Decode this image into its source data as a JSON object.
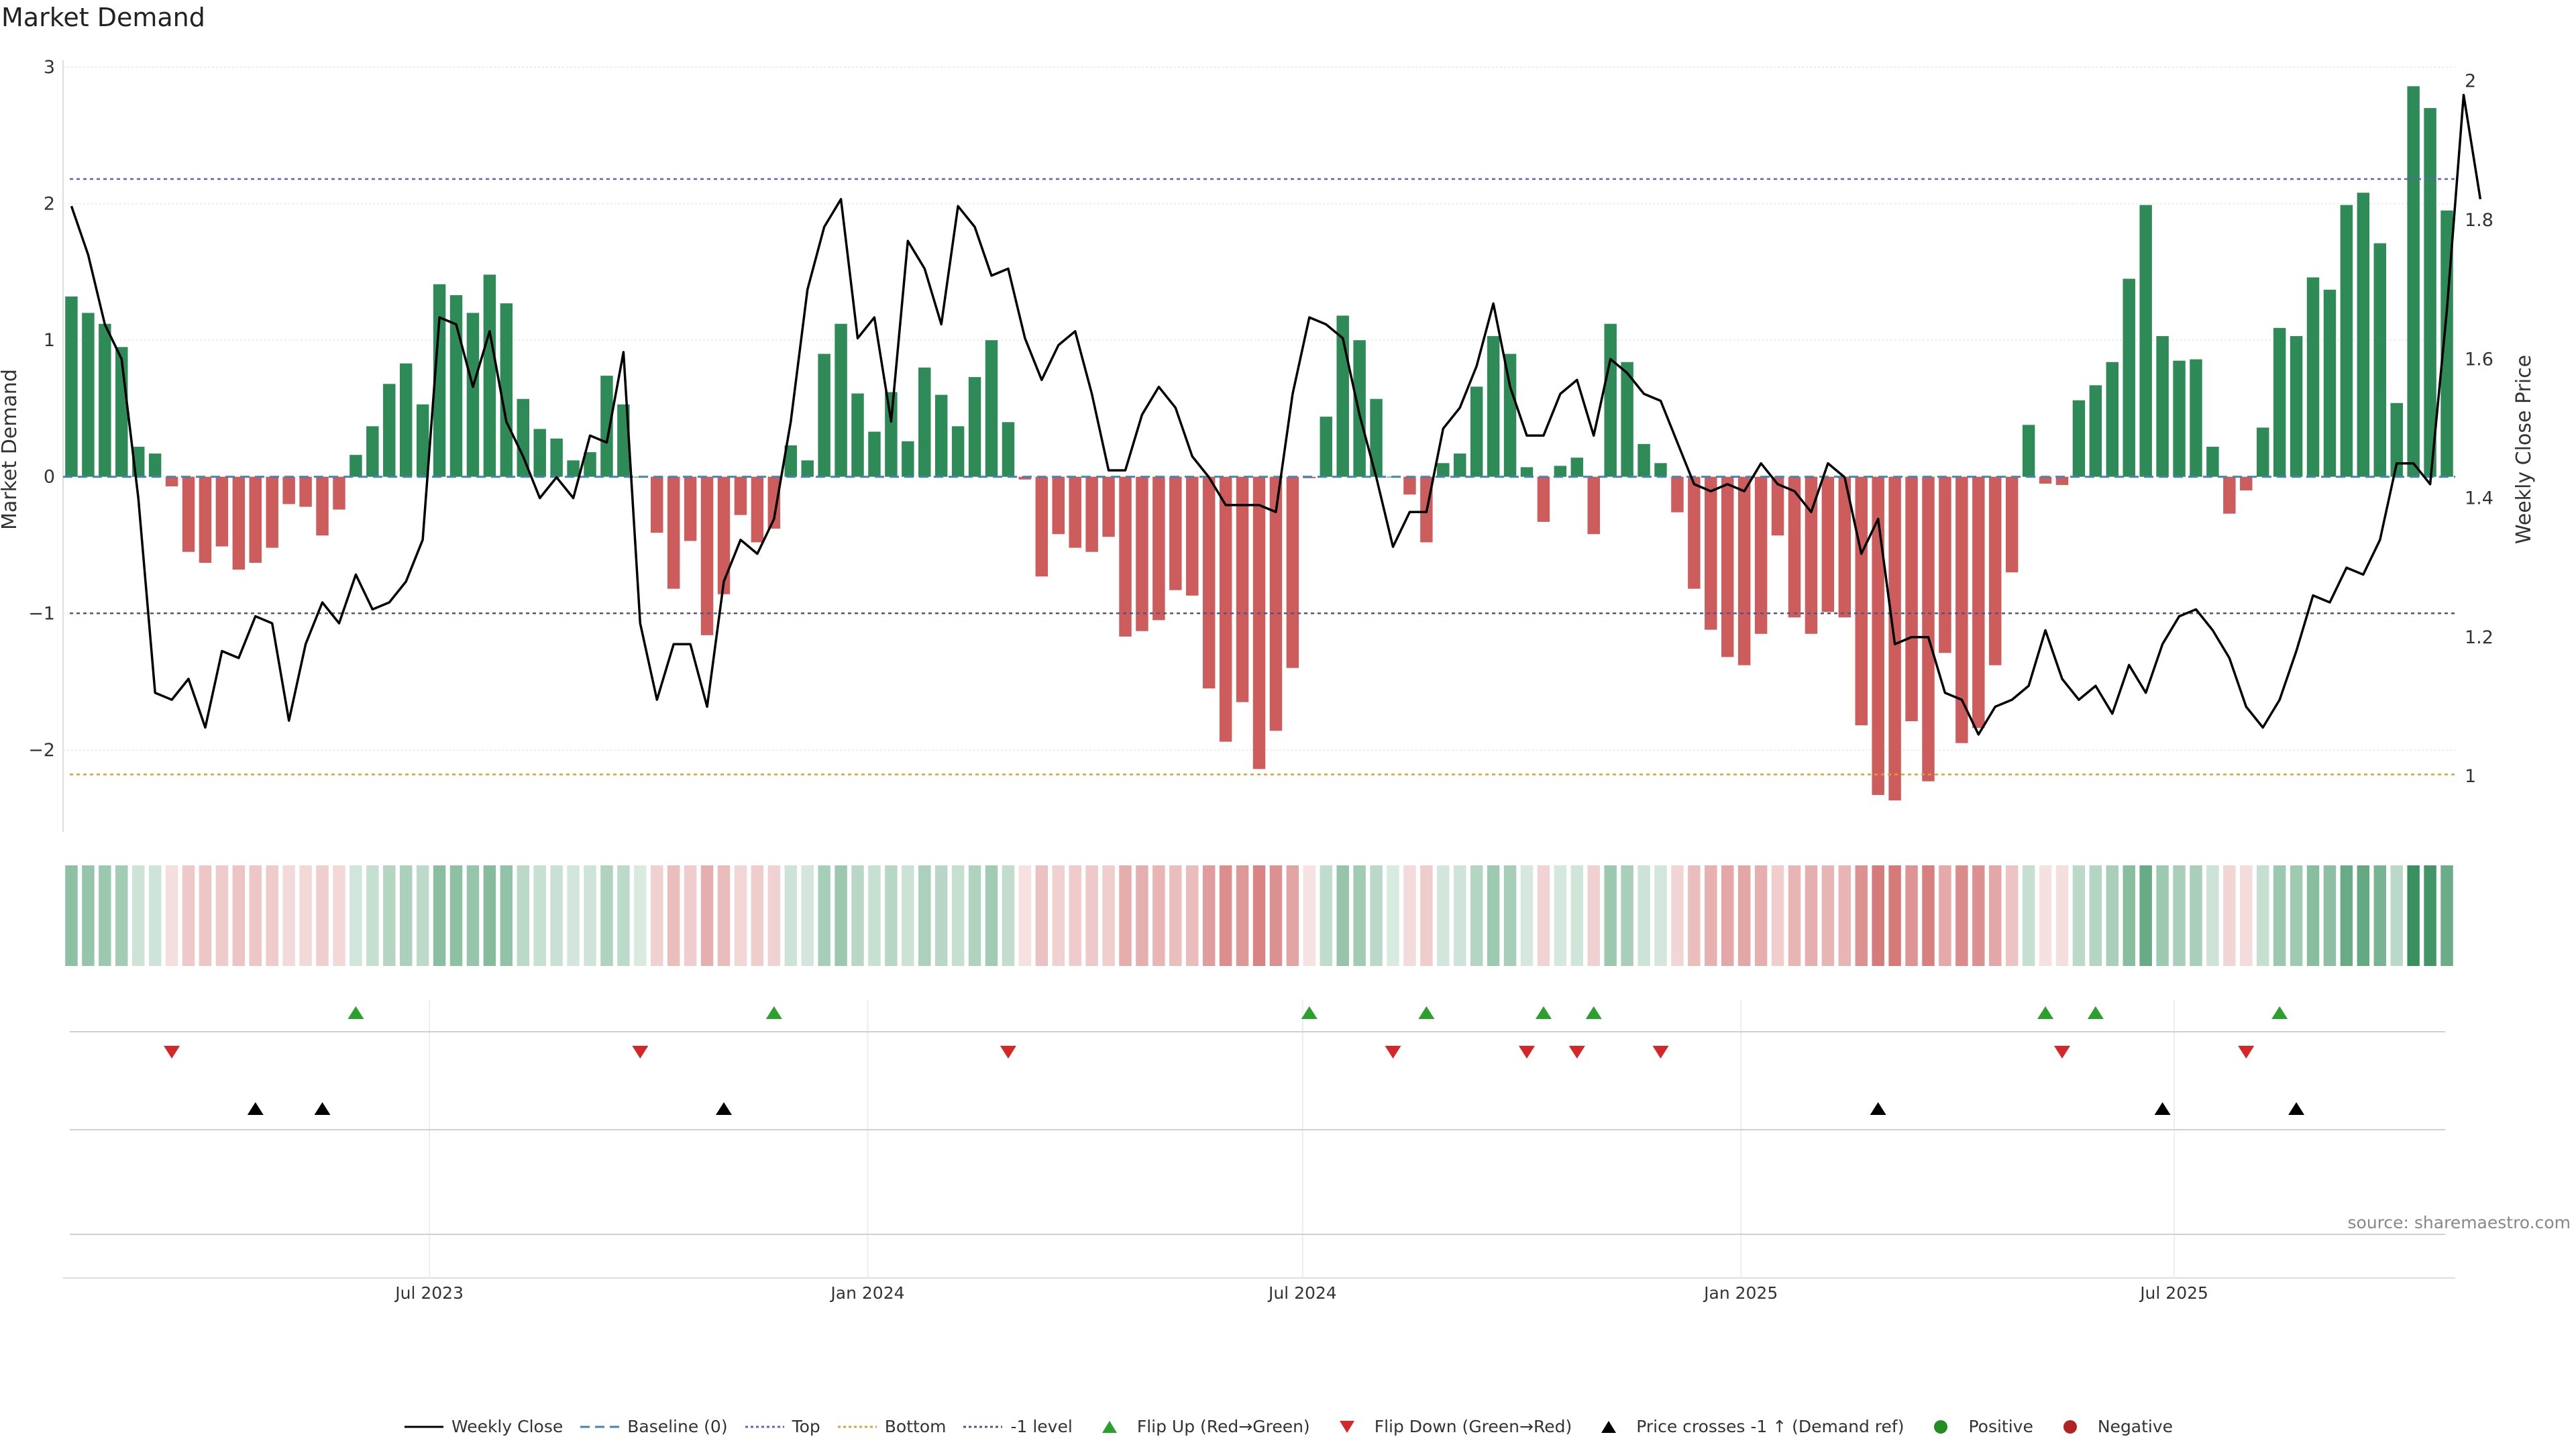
{
  "chart_data": {
    "type": "bar",
    "title": "Market Demand",
    "ylabel": "Market Demand",
    "y2label": "Weekly Close Price",
    "ylim": [
      -2.6,
      3.0
    ],
    "y2lim": [
      0.92,
      2.02
    ],
    "yticks": [
      "3",
      "2",
      "1",
      "0",
      "−1",
      "−2"
    ],
    "ytick_values": [
      3,
      2,
      1,
      0,
      -1,
      -2
    ],
    "y2ticks": [
      "2",
      "1.8",
      "1.6",
      "1.4",
      "1.2",
      "1"
    ],
    "y2tick_values": [
      2,
      1.8,
      1.6,
      1.4,
      1.2,
      1
    ],
    "x_start": "2023-02-05",
    "x_step_weeks": 1,
    "xticks": [
      {
        "label": "Jul 2023",
        "index": 21.4
      },
      {
        "label": "Jan 2024",
        "index": 47.6
      },
      {
        "label": "Jul 2024",
        "index": 73.6
      },
      {
        "label": "Jan 2025",
        "index": 99.8
      },
      {
        "label": "Jul 2025",
        "index": 125.7
      }
    ],
    "reference_lines": {
      "baseline": 0,
      "top": 2.18,
      "bottom": -2.18,
      "minus_one": -1
    },
    "series": [
      {
        "name": "Market Demand",
        "values": [
          1.32,
          1.2,
          1.12,
          0.95,
          0.22,
          0.17,
          -0.07,
          -0.55,
          -0.63,
          -0.51,
          -0.68,
          -0.63,
          -0.52,
          -0.2,
          -0.22,
          -0.43,
          -0.24,
          0.16,
          0.37,
          0.68,
          0.83,
          0.53,
          1.41,
          1.33,
          1.2,
          1.48,
          1.27,
          0.57,
          0.35,
          0.28,
          0.12,
          0.18,
          0.74,
          0.53,
          0,
          -0.41,
          -0.82,
          -0.47,
          -1.16,
          -0.86,
          -0.28,
          -0.48,
          -0.38,
          0.23,
          0.12,
          0.9,
          1.12,
          0.61,
          0.33,
          0.62,
          0.26,
          0.8,
          0.6,
          0.37,
          0.73,
          1.0,
          0.4,
          -0.02,
          -0.73,
          -0.42,
          -0.52,
          -0.55,
          -0.44,
          -1.17,
          -1.13,
          -1.05,
          -0.83,
          -0.87,
          -1.55,
          -1.94,
          -1.65,
          -2.14,
          -1.86,
          -1.4,
          -0.01,
          0.44,
          1.18,
          1.0,
          0.57,
          0,
          -0.13,
          -0.48,
          0.1,
          0.17,
          0.66,
          1.03,
          0.9,
          0.07,
          -0.33,
          0.08,
          0.14,
          -0.42,
          1.12,
          0.84,
          0.24,
          0.1,
          -0.26,
          -0.82,
          -1.12,
          -1.32,
          -1.38,
          -1.15,
          -0.43,
          -1.03,
          -1.15,
          -0.99,
          -1.03,
          -1.82,
          -2.33,
          -2.37,
          -1.79,
          -2.23,
          -1.29,
          -1.95,
          -1.84,
          -1.38,
          -0.7,
          0.38,
          -0.05,
          -0.06,
          0.56,
          0.67,
          0.84,
          1.45,
          1.99,
          1.03,
          0.85,
          0.86,
          0.22,
          -0.27,
          -0.1,
          0.36,
          1.09,
          1.03,
          1.46,
          1.37,
          1.99,
          2.08,
          1.71,
          0.54,
          2.86,
          2.7,
          1.95
        ]
      },
      {
        "name": "Weekly Close",
        "axis": "right",
        "values": [
          1.82,
          1.75,
          1.65,
          1.6,
          1.4,
          1.12,
          1.11,
          1.14,
          1.07,
          1.18,
          1.17,
          1.23,
          1.22,
          1.08,
          1.19,
          1.25,
          1.22,
          1.29,
          1.24,
          1.25,
          1.28,
          1.34,
          1.66,
          1.65,
          1.56,
          1.64,
          1.51,
          1.46,
          1.4,
          1.43,
          1.4,
          1.49,
          1.48,
          1.61,
          1.22,
          1.11,
          1.19,
          1.19,
          1.1,
          1.28,
          1.34,
          1.32,
          1.37,
          1.51,
          1.7,
          1.79,
          1.83,
          1.63,
          1.66,
          1.51,
          1.77,
          1.73,
          1.65,
          1.82,
          1.79,
          1.72,
          1.73,
          1.63,
          1.57,
          1.62,
          1.64,
          1.55,
          1.44,
          1.44,
          1.52,
          1.56,
          1.53,
          1.46,
          1.43,
          1.39,
          1.39,
          1.39,
          1.38,
          1.55,
          1.66,
          1.65,
          1.63,
          1.52,
          1.43,
          1.33,
          1.38,
          1.38,
          1.5,
          1.53,
          1.59,
          1.68,
          1.56,
          1.49,
          1.49,
          1.55,
          1.57,
          1.49,
          1.6,
          1.58,
          1.55,
          1.54,
          1.48,
          1.42,
          1.41,
          1.42,
          1.41,
          1.45,
          1.42,
          1.41,
          1.38,
          1.45,
          1.43,
          1.32,
          1.37,
          1.19,
          1.2,
          1.2,
          1.12,
          1.11,
          1.06,
          1.1,
          1.11,
          1.13,
          1.21,
          1.14,
          1.11,
          1.13,
          1.09,
          1.16,
          1.12,
          1.19,
          1.23,
          1.24,
          1.21,
          1.17,
          1.1,
          1.07,
          1.11,
          1.18,
          1.26,
          1.25,
          1.3,
          1.29,
          1.34,
          1.45,
          1.45,
          1.42,
          1.67,
          1.98,
          1.83
        ]
      }
    ],
    "signal_rows": {
      "flip_up": [
        17,
        42,
        74,
        81,
        88,
        91,
        118,
        121,
        132
      ],
      "flip_down": [
        6,
        34,
        56,
        79,
        87,
        90,
        95,
        119,
        130
      ],
      "price_cross_up": [
        11,
        15,
        39,
        108,
        125,
        133
      ],
      "positive": [],
      "negative": []
    }
  },
  "legend": {
    "items": [
      {
        "label": "Weekly Close"
      },
      {
        "label": "Baseline (0)"
      },
      {
        "label": "Top"
      },
      {
        "label": "Bottom"
      },
      {
        "label": "-1 level"
      },
      {
        "label": "Flip Up (Red→Green)"
      },
      {
        "label": "Flip Down (Green→Red)"
      },
      {
        "label": "Price crosses -1 ↑ (Demand ref)"
      },
      {
        "label": "Positive"
      },
      {
        "label": "Negative"
      }
    ]
  },
  "source": "source: sharemaestro.com",
  "colors": {
    "positive": "#2e8b57",
    "negative": "#cd5c5c",
    "price": "#000000",
    "top": "#6a5acd",
    "bottom": "#e0a030",
    "minus_one": "#555577",
    "baseline": "#4682b4",
    "flip_up": "#2ca02c",
    "flip_down": "#d62728",
    "cross": "#000000",
    "dot_positive": "#228b22",
    "dot_negative": "#b22222"
  }
}
